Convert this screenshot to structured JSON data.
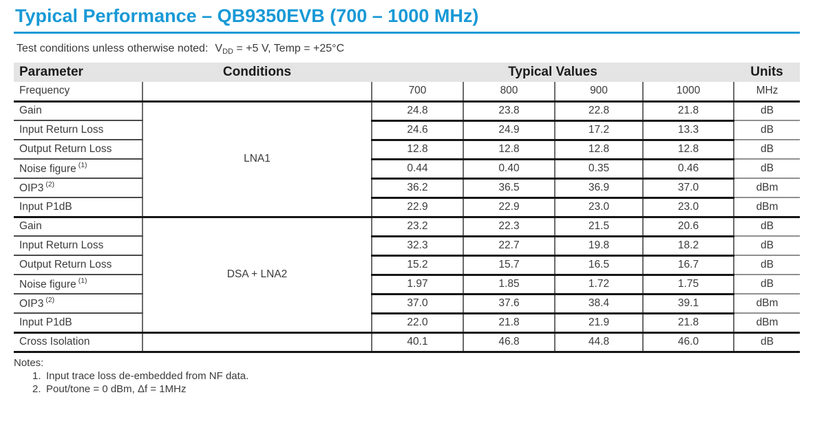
{
  "colors": {
    "accent_blue": "#1899d6",
    "header_bg": "#e4e4e4"
  },
  "page": {
    "title": "Typical Performance – QB9350EVB (700 – 1000 MHz)"
  },
  "test_conditions": {
    "prefix": "Test conditions unless otherwise noted:",
    "voltage_symbol": "V",
    "voltage_subscript": "DD",
    "suffix": " = +5 V, Temp = +25°C"
  },
  "table": {
    "headers": {
      "parameter": "Parameter",
      "conditions": "Conditions",
      "typical_values": "Typical Values",
      "units": "Units"
    },
    "frequency_columns": [
      "700",
      "800",
      "900",
      "1000"
    ],
    "groups": [
      {
        "condition": "",
        "rows": [
          {
            "parameter": "Frequency",
            "note": "",
            "values": [
              "700",
              "800",
              "900",
              "1000"
            ],
            "unit": "MHz"
          }
        ]
      },
      {
        "condition": "LNA1",
        "rows": [
          {
            "parameter": "Gain",
            "note": "",
            "values": [
              "24.8",
              "23.8",
              "22.8",
              "21.8"
            ],
            "unit": "dB"
          },
          {
            "parameter": "Input Return Loss",
            "note": "",
            "values": [
              "24.6",
              "24.9",
              "17.2",
              "13.3"
            ],
            "unit": "dB"
          },
          {
            "parameter": "Output Return Loss",
            "note": "",
            "values": [
              "12.8",
              "12.8",
              "12.8",
              "12.8"
            ],
            "unit": "dB"
          },
          {
            "parameter": "Noise figure",
            "note": "(1)",
            "values": [
              "0.44",
              "0.40",
              "0.35",
              "0.46"
            ],
            "unit": "dB"
          },
          {
            "parameter": "OIP3",
            "note": "(2)",
            "values": [
              "36.2",
              "36.5",
              "36.9",
              "37.0"
            ],
            "unit": "dBm"
          },
          {
            "parameter": "Input P1dB",
            "note": "",
            "values": [
              "22.9",
              "22.9",
              "23.0",
              "23.0"
            ],
            "unit": "dBm"
          }
        ]
      },
      {
        "condition": "DSA + LNA2",
        "rows": [
          {
            "parameter": "Gain",
            "note": "",
            "values": [
              "23.2",
              "22.3",
              "21.5",
              "20.6"
            ],
            "unit": "dB"
          },
          {
            "parameter": "Input Return Loss",
            "note": "",
            "values": [
              "32.3",
              "22.7",
              "19.8",
              "18.2"
            ],
            "unit": "dB"
          },
          {
            "parameter": "Output Return Loss",
            "note": "",
            "values": [
              "15.2",
              "15.7",
              "16.5",
              "16.7"
            ],
            "unit": "dB"
          },
          {
            "parameter": "Noise figure",
            "note": "(1)",
            "values": [
              "1.97",
              "1.85",
              "1.72",
              "1.75"
            ],
            "unit": "dB"
          },
          {
            "parameter": "OIP3",
            "note": "(2)",
            "values": [
              "37.0",
              "37.6",
              "38.4",
              "39.1"
            ],
            "unit": "dBm"
          },
          {
            "parameter": "Input P1dB",
            "note": "",
            "values": [
              "22.0",
              "21.8",
              "21.9",
              "21.8"
            ],
            "unit": "dBm"
          }
        ]
      },
      {
        "condition": "",
        "rows": [
          {
            "parameter": "Cross Isolation",
            "note": "",
            "values": [
              "40.1",
              "46.8",
              "44.8",
              "46.0"
            ],
            "unit": "dB"
          }
        ]
      }
    ]
  },
  "notes": {
    "label": "Notes:",
    "items": [
      {
        "number": "1.",
        "text": "Input trace loss de-embedded from NF data."
      },
      {
        "number": "2.",
        "text": "Pout/tone = 0 dBm, Δf = 1MHz"
      }
    ]
  }
}
